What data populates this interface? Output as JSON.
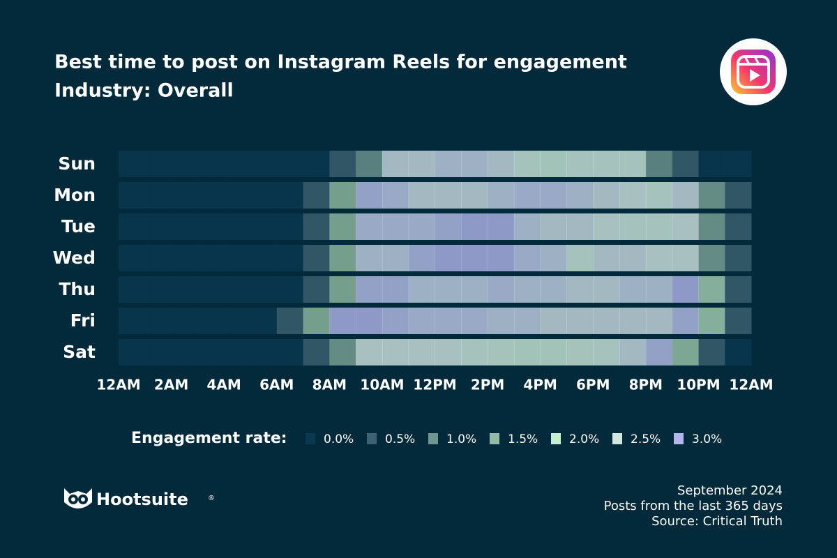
{
  "chart_data": {
    "type": "heatmap",
    "title": "Best time to post on Instagram Reels for engagement",
    "subtitle": "Industry: Overall",
    "categories": [
      "Sun",
      "Mon",
      "Tue",
      "Wed",
      "Thu",
      "Fri",
      "Sat"
    ],
    "x": [
      0,
      1,
      2,
      3,
      4,
      5,
      6,
      7,
      8,
      9,
      10,
      11,
      12,
      13,
      14,
      15,
      16,
      17,
      18,
      19,
      20,
      21,
      22,
      23
    ],
    "xlim": [
      0,
      24
    ],
    "xticks": [
      {
        "value": 0,
        "label": "12AM"
      },
      {
        "value": 2,
        "label": "2AM"
      },
      {
        "value": 4,
        "label": "4AM"
      },
      {
        "value": 6,
        "label": "6AM"
      },
      {
        "value": 8,
        "label": "8AM"
      },
      {
        "value": 10,
        "label": "10AM"
      },
      {
        "value": 12,
        "label": "12PM"
      },
      {
        "value": 14,
        "label": "2PM"
      },
      {
        "value": 16,
        "label": "4PM"
      },
      {
        "value": 18,
        "label": "6PM"
      },
      {
        "value": 20,
        "label": "8PM"
      },
      {
        "value": 22,
        "label": "10PM"
      },
      {
        "value": 24,
        "label": "12AM"
      }
    ],
    "values": [
      [
        0,
        0,
        0,
        0,
        0,
        0,
        0,
        0,
        0.5,
        1.0,
        2.6,
        2.6,
        2.7,
        2.7,
        2.6,
        2.3,
        2.2,
        2.4,
        2.4,
        2.4,
        1.0,
        0.5,
        0,
        0
      ],
      [
        0,
        0,
        0,
        0,
        0,
        0,
        0,
        0.5,
        1.5,
        2.9,
        2.8,
        2.6,
        2.6,
        2.6,
        2.7,
        2.8,
        2.8,
        2.7,
        2.6,
        2.5,
        2.4,
        2.6,
        1.2,
        0.5
      ],
      [
        0,
        0,
        0,
        0,
        0,
        0,
        0,
        0.5,
        1.5,
        2.8,
        2.8,
        2.8,
        2.9,
        3.0,
        3.0,
        2.7,
        2.6,
        2.6,
        2.5,
        2.4,
        2.4,
        2.5,
        1.2,
        0.5
      ],
      [
        0,
        0,
        0,
        0,
        0,
        0,
        0,
        0.5,
        1.5,
        2.7,
        2.7,
        2.9,
        3.0,
        3.0,
        3.0,
        2.8,
        2.7,
        2.4,
        2.6,
        2.6,
        2.5,
        2.5,
        1.2,
        0.5
      ],
      [
        0,
        0,
        0,
        0,
        0,
        0,
        0,
        0.5,
        1.5,
        2.9,
        2.9,
        2.7,
        2.7,
        2.7,
        2.8,
        2.7,
        2.7,
        2.6,
        2.6,
        2.7,
        2.7,
        3.0,
        1.7,
        0.5
      ],
      [
        0,
        0,
        0,
        0,
        0,
        0,
        0.5,
        1.5,
        3.0,
        3.0,
        2.9,
        2.8,
        2.8,
        2.8,
        2.7,
        2.7,
        2.6,
        2.6,
        2.6,
        2.6,
        2.6,
        2.9,
        1.7,
        0.5
      ],
      [
        0,
        0,
        0,
        0,
        0,
        0,
        0,
        0.5,
        1.2,
        2.5,
        2.5,
        2.5,
        2.5,
        2.4,
        2.3,
        2.2,
        2.2,
        2.3,
        2.4,
        2.6,
        2.9,
        1.6,
        0.5,
        0
      ]
    ],
    "legend": {
      "title": "Engagement rate:",
      "stops": [
        {
          "value": 0,
          "label": "0.0%",
          "color": "#0a3850"
        },
        {
          "value": 0.5,
          "label": "0.5%",
          "color": "#3d6272"
        },
        {
          "value": 1.0,
          "label": "1.0%",
          "color": "#6f9690"
        },
        {
          "value": 1.5,
          "label": "1.5%",
          "color": "#93bba3"
        },
        {
          "value": 2.0,
          "label": "2.0%",
          "color": "#c6efd2"
        },
        {
          "value": 2.5,
          "label": "2.5%",
          "color": "#d3e6e2"
        },
        {
          "value": 3.0,
          "label": "3.0%",
          "color": "#b3b5ec"
        }
      ]
    }
  },
  "footer": {
    "brand": "Hootsuite",
    "brand_mark": "®",
    "lines": [
      "September 2024",
      "Posts from the last 365 days",
      "Source: Critical Truth"
    ]
  }
}
